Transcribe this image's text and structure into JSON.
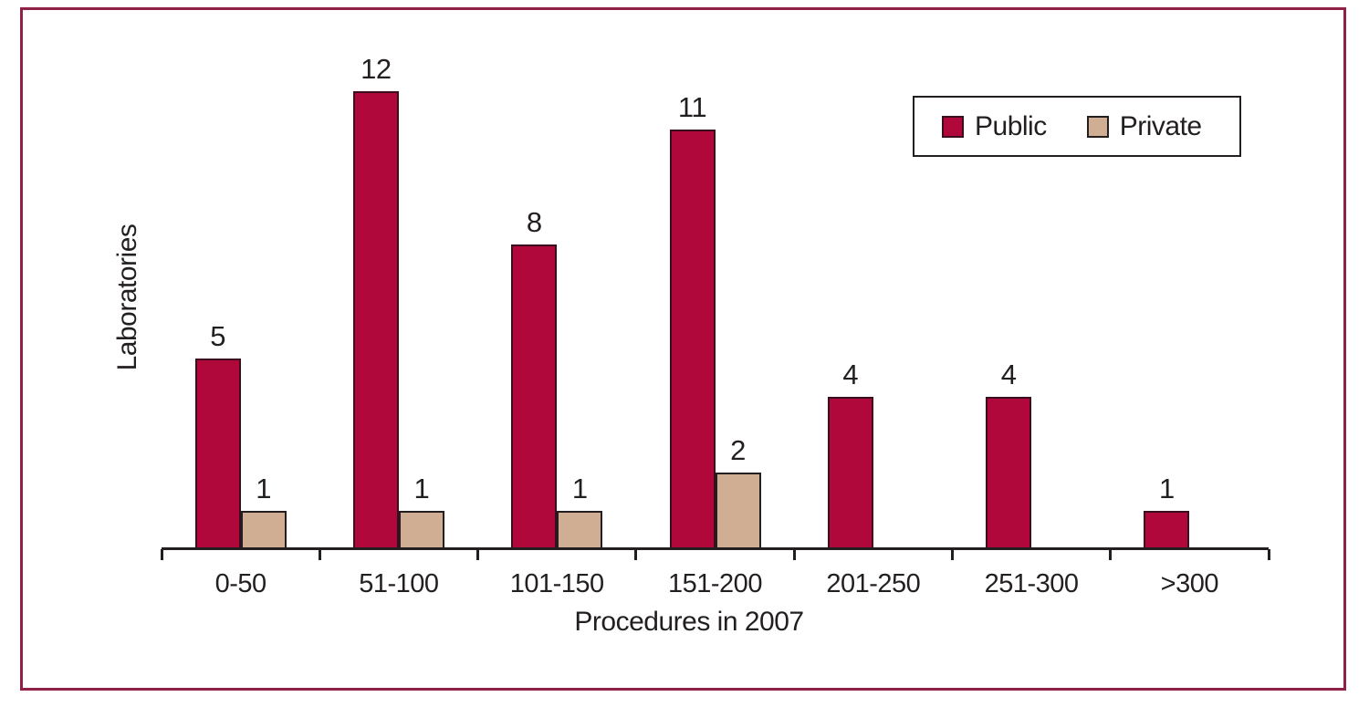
{
  "colors": {
    "public_fill": "#B1083C",
    "public_border": "#3A0E1F",
    "private_fill": "#CFAE93",
    "private_border": "#231F20",
    "frame_border": "#8E2145",
    "axis": "#231F20",
    "text": "#231F20"
  },
  "legend": {
    "items": [
      {
        "label": "Public",
        "color": "#B1083C"
      },
      {
        "label": "Private",
        "color": "#CFAE93"
      }
    ]
  },
  "chart_data": {
    "type": "bar",
    "categories": [
      "0-50",
      "51-100",
      "101-150",
      "151-200",
      "201-250",
      "251-300",
      ">300"
    ],
    "series": [
      {
        "name": "Public",
        "values": [
          5,
          12,
          8,
          11,
          4,
          4,
          1
        ]
      },
      {
        "name": "Private",
        "values": [
          1,
          1,
          1,
          2,
          0,
          0,
          0
        ]
      }
    ],
    "title": "",
    "xlabel": "Procedures in 2007",
    "ylabel": "Laboratories",
    "ylim": [
      0,
      13
    ],
    "y_axis_line": false,
    "grid": false,
    "value_labels": true,
    "zero_value_bars_hidden": true,
    "legend_position": "top-right"
  }
}
